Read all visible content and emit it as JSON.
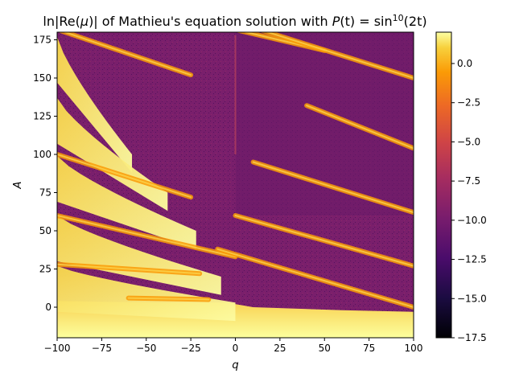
{
  "chart_data": {
    "type": "heatmap",
    "title_parts": {
      "pre": "ln|Re(",
      "mu": "μ",
      "mid": ")| of Mathieu's equation solution with ",
      "P": "P",
      "paren_t_eq": "(t) = sin",
      "sup": "10",
      "arg": "(2t)"
    },
    "xlabel": "q",
    "ylabel": "A",
    "xlim": [
      -100,
      100
    ],
    "ylim": [
      -20,
      180
    ],
    "xticks": [
      -100,
      -75,
      -50,
      -25,
      0,
      25,
      50,
      75,
      100
    ],
    "xtick_labels": [
      "−100",
      "−75",
      "−50",
      "−25",
      "0",
      "25",
      "50",
      "75",
      "100"
    ],
    "yticks": [
      0,
      25,
      50,
      75,
      100,
      125,
      150,
      175
    ],
    "ytick_labels": [
      "0",
      "25",
      "50",
      "75",
      "100",
      "125",
      "150",
      "175"
    ],
    "colorbar": {
      "colormap": "inferno",
      "range": [
        -17.5,
        2
      ],
      "ticks": [
        0,
        -2.5,
        -5,
        -7.5,
        -10,
        -12.5,
        -15,
        -17.5
      ],
      "tick_labels": [
        "0.0",
        "−2.5",
        "−5.0",
        "−7.5",
        "−10.0",
        "−12.5",
        "−15.0",
        "−17.5"
      ]
    },
    "stable_region_boundaries": [
      {
        "left_A": 177,
        "right_q": -58,
        "right_A": 100
      },
      {
        "left_A": 137,
        "right_q": -38,
        "right_A": 75
      },
      {
        "left_A": 99,
        "right_q": -22,
        "right_A": 50
      },
      {
        "left_A": 60,
        "right_q": -8,
        "right_A": 20
      },
      {
        "left_A": 27,
        "right_q": 0,
        "right_A": 3
      }
    ],
    "bright_bands": [
      {
        "from": [
          -100,
          100
        ],
        "to": [
          -25,
          72
        ]
      },
      {
        "from": [
          -100,
          60
        ],
        "to": [
          0,
          33
        ]
      },
      {
        "from": [
          -100,
          28
        ],
        "to": [
          -20,
          22
        ]
      },
      {
        "from": [
          -60,
          6
        ],
        "to": [
          -15,
          5
        ]
      },
      {
        "from": [
          -98,
          181
        ],
        "to": [
          -25,
          152
        ]
      },
      {
        "from": [
          -5,
          183
        ],
        "to": [
          50,
          168
        ]
      },
      {
        "from": [
          10,
          183
        ],
        "to": [
          100,
          150
        ]
      },
      {
        "from": [
          40,
          132
        ],
        "to": [
          100,
          104
        ]
      },
      {
        "from": [
          10,
          95
        ],
        "to": [
          100,
          62
        ]
      },
      {
        "from": [
          0,
          60
        ],
        "to": [
          100,
          27
        ]
      },
      {
        "from": [
          -10,
          38
        ],
        "to": [
          100,
          0
        ]
      }
    ]
  }
}
